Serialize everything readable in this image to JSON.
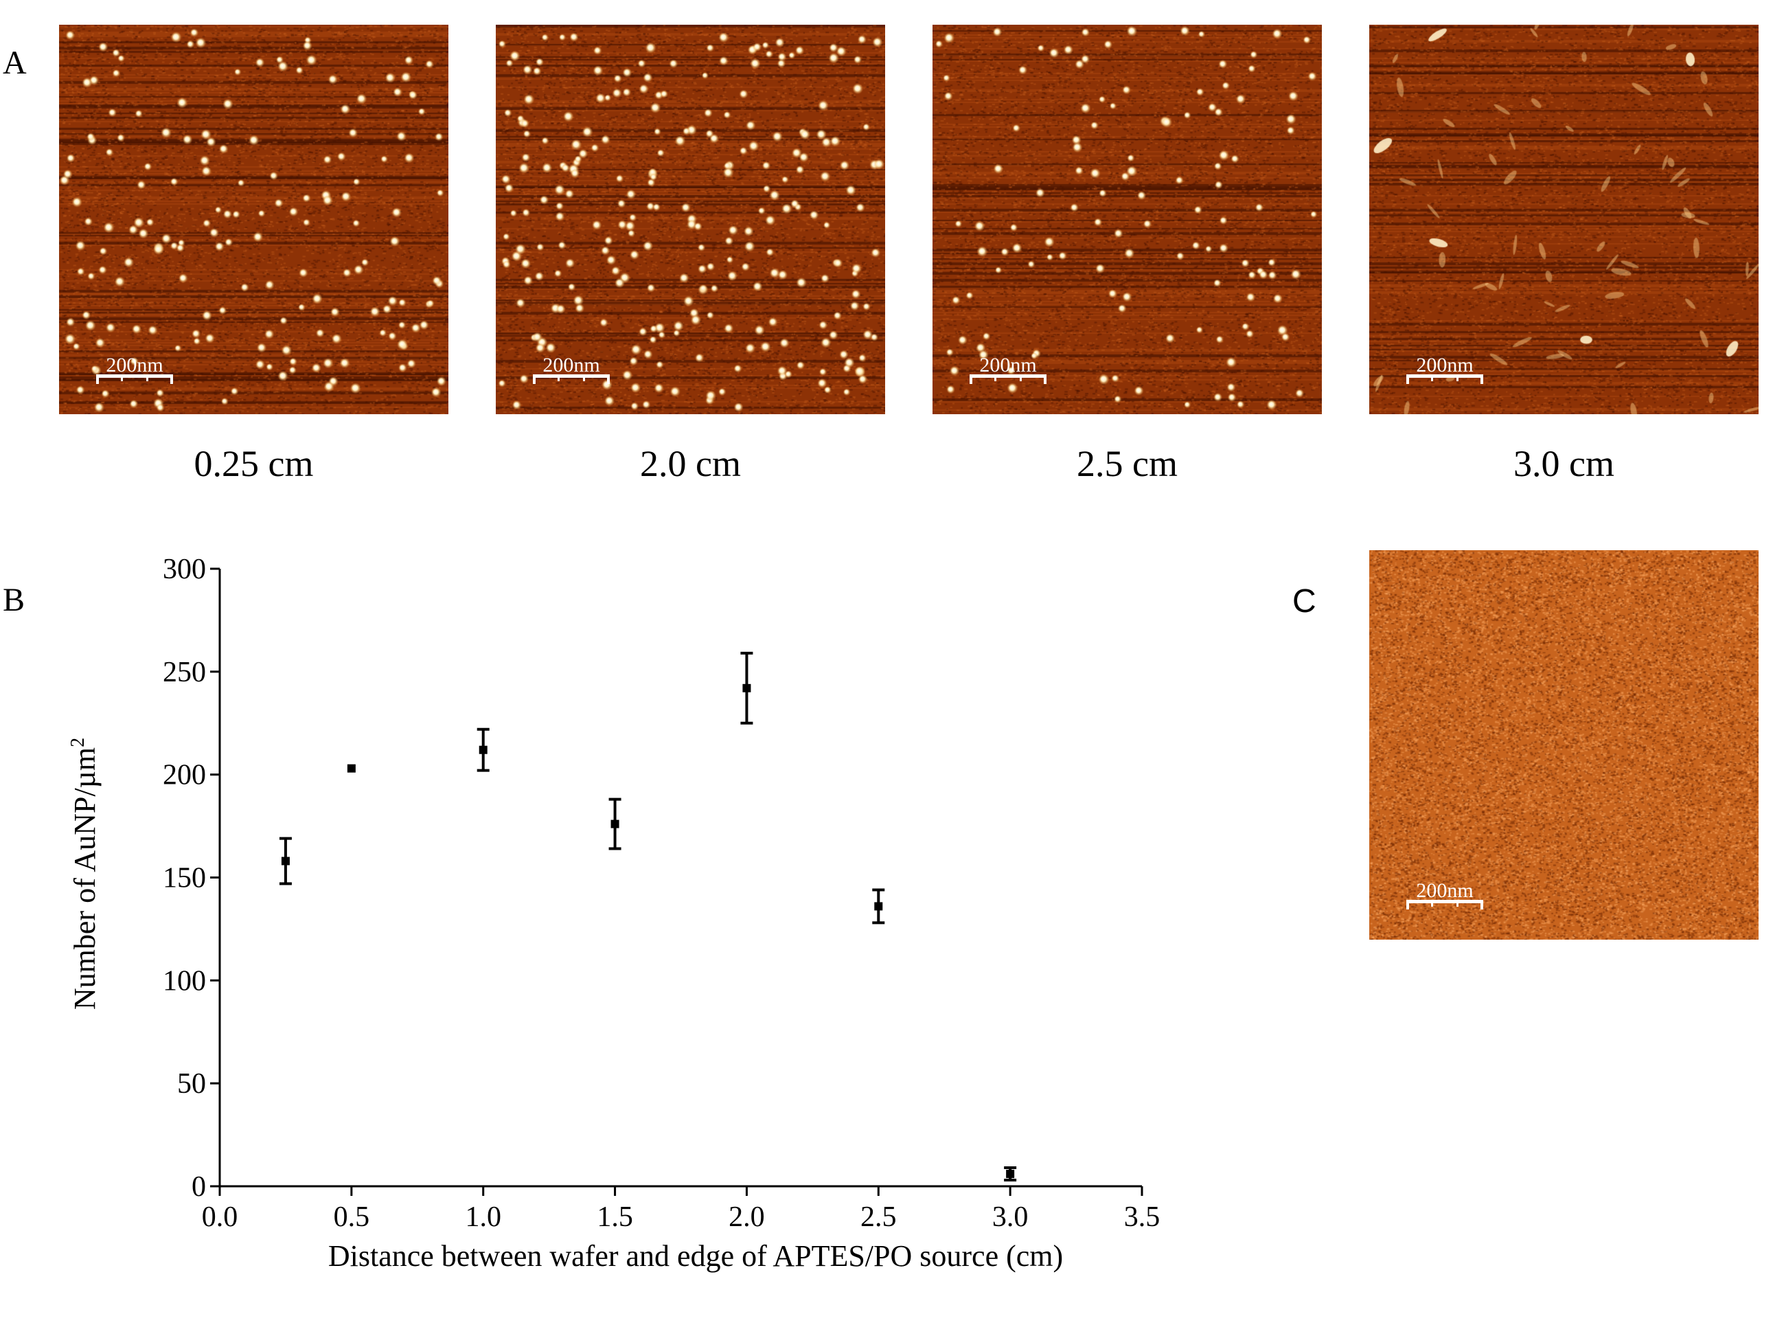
{
  "panel_labels": {
    "a": "A",
    "b": "B",
    "c": "C"
  },
  "afm_images": [
    {
      "caption": "0.25 cm",
      "scale_bar": "200nm",
      "particle_density": "medium"
    },
    {
      "caption": "2.0 cm",
      "scale_bar": "200nm",
      "particle_density": "high"
    },
    {
      "caption": "2.5 cm",
      "scale_bar": "200nm",
      "particle_density": "low"
    },
    {
      "caption": "3.0 cm",
      "scale_bar": "200nm",
      "particle_density": "none"
    }
  ],
  "afm_control": {
    "scale_bar": "200nm"
  },
  "colors": {
    "afm_background": "#8d3206",
    "afm_particle": "#fff0c0",
    "afm_control_background": "#c8641e",
    "axis": "#000000",
    "scale_bar": "#ffffff"
  },
  "chart_data": {
    "type": "scatter",
    "title": "",
    "xlabel": "Distance between wafer and edge of APTES/PO source (cm)",
    "ylabel": "Number of AuNP/µm",
    "ylabel_superscript": "2",
    "xlim": [
      0.0,
      3.5
    ],
    "ylim": [
      0,
      300
    ],
    "x_ticks": [
      "0.0",
      "0.5",
      "1.0",
      "1.5",
      "2.0",
      "2.5",
      "3.0",
      "3.5"
    ],
    "y_ticks": [
      "0",
      "50",
      "100",
      "150",
      "200",
      "250",
      "300"
    ],
    "grid": false,
    "legend": "none",
    "points": [
      {
        "x": 0.25,
        "y": 158,
        "err": 11
      },
      {
        "x": 0.5,
        "y": 203,
        "err": 0
      },
      {
        "x": 1.0,
        "y": 212,
        "err": 10
      },
      {
        "x": 1.5,
        "y": 176,
        "err": 12
      },
      {
        "x": 2.0,
        "y": 242,
        "err": 17
      },
      {
        "x": 2.5,
        "y": 136,
        "err": 8
      },
      {
        "x": 3.0,
        "y": 6,
        "err": 3
      }
    ]
  }
}
